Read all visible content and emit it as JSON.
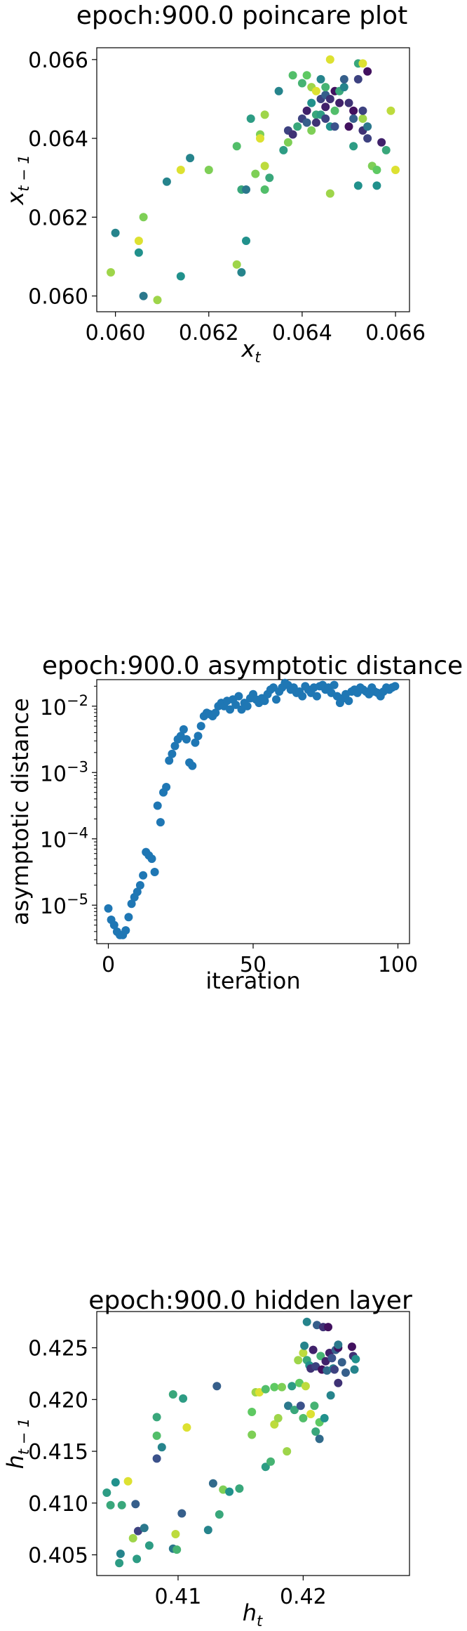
{
  "chart_data": [
    {
      "type": "scatter",
      "title": "epoch:900.0 poincare plot",
      "xlabel": "x",
      "xlabel_sub": "t",
      "ylabel": "x",
      "ylabel_sub": "t − 1",
      "xlim": [
        0.0596,
        0.0663
      ],
      "ylim": [
        0.0596,
        0.0663
      ],
      "xticks": [
        0.06,
        0.062,
        0.064,
        0.066
      ],
      "yticks": [
        0.06,
        0.062,
        0.064,
        0.066
      ],
      "xtick_labels": [
        "0.060",
        "0.062",
        "0.064",
        "0.066"
      ],
      "ytick_labels": [
        "0.060",
        "0.062",
        "0.064",
        "0.066"
      ],
      "colormap": "viridis",
      "points": [
        [
          0.0599,
          0.0606,
          0.85
        ],
        [
          0.06,
          0.0616,
          0.45
        ],
        [
          0.0605,
          0.0614,
          0.95
        ],
        [
          0.0605,
          0.0611,
          0.5
        ],
        [
          0.0606,
          0.062,
          0.8
        ],
        [
          0.0606,
          0.06,
          0.4
        ],
        [
          0.0609,
          0.0599,
          0.85
        ],
        [
          0.0611,
          0.0629,
          0.45
        ],
        [
          0.0614,
          0.0632,
          0.95
        ],
        [
          0.0614,
          0.0605,
          0.5
        ],
        [
          0.0616,
          0.0635,
          0.45
        ],
        [
          0.062,
          0.0632,
          0.8
        ],
        [
          0.0626,
          0.0638,
          0.7
        ],
        [
          0.0626,
          0.0608,
          0.85
        ],
        [
          0.0627,
          0.0606,
          0.45
        ],
        [
          0.0627,
          0.0627,
          0.6
        ],
        [
          0.0628,
          0.0614,
          0.5
        ],
        [
          0.0628,
          0.0627,
          0.4
        ],
        [
          0.0629,
          0.0645,
          0.55
        ],
        [
          0.063,
          0.0631,
          0.8
        ],
        [
          0.0631,
          0.0641,
          0.8
        ],
        [
          0.0631,
          0.064,
          0.95
        ],
        [
          0.0632,
          0.0627,
          0.7
        ],
        [
          0.0632,
          0.0633,
          0.9
        ],
        [
          0.0632,
          0.0646,
          0.85
        ],
        [
          0.0633,
          0.063,
          0.6
        ],
        [
          0.0635,
          0.0652,
          0.45
        ],
        [
          0.0636,
          0.0637,
          0.55
        ],
        [
          0.0637,
          0.0639,
          0.8
        ],
        [
          0.0637,
          0.0642,
          0.2
        ],
        [
          0.0638,
          0.0656,
          0.7
        ],
        [
          0.0638,
          0.0641,
          0.15
        ],
        [
          0.0639,
          0.0643,
          0.6
        ],
        [
          0.064,
          0.0654,
          0.65
        ],
        [
          0.064,
          0.0645,
          0.2
        ],
        [
          0.0641,
          0.0656,
          0.75
        ],
        [
          0.0641,
          0.0647,
          0.1
        ],
        [
          0.0641,
          0.0644,
          0.3
        ],
        [
          0.0642,
          0.0653,
          0.85
        ],
        [
          0.0642,
          0.0649,
          0.5
        ],
        [
          0.0642,
          0.0642,
          0.8
        ],
        [
          0.0643,
          0.0646,
          0.6
        ],
        [
          0.0643,
          0.0644,
          0.15
        ],
        [
          0.0643,
          0.0652,
          0.95
        ],
        [
          0.0644,
          0.065,
          0.2
        ],
        [
          0.0644,
          0.0655,
          0.45
        ],
        [
          0.0644,
          0.0646,
          0.55
        ],
        [
          0.0645,
          0.0651,
          0.3
        ],
        [
          0.0645,
          0.0648,
          0.1
        ],
        [
          0.0645,
          0.0653,
          0.65
        ],
        [
          0.0645,
          0.0645,
          0.2
        ],
        [
          0.0646,
          0.066,
          0.95
        ],
        [
          0.0646,
          0.065,
          0.15
        ],
        [
          0.0646,
          0.0643,
          0.5
        ],
        [
          0.0646,
          0.0626,
          0.85
        ],
        [
          0.0647,
          0.0652,
          0.05
        ],
        [
          0.0647,
          0.0647,
          0.7
        ],
        [
          0.0647,
          0.0643,
          0.25
        ],
        [
          0.0648,
          0.0652,
          0.6
        ],
        [
          0.0648,
          0.0649,
          0.1
        ],
        [
          0.0649,
          0.0653,
          0.45
        ],
        [
          0.0649,
          0.0655,
          0.3
        ],
        [
          0.065,
          0.0643,
          0.05
        ],
        [
          0.065,
          0.0649,
          0.15
        ],
        [
          0.0651,
          0.0647,
          0.05
        ],
        [
          0.0651,
          0.0645,
          0.3
        ],
        [
          0.0651,
          0.0638,
          0.55
        ],
        [
          0.0652,
          0.0628,
          0.5
        ],
        [
          0.0652,
          0.0655,
          0.2
        ],
        [
          0.0652,
          0.0659,
          0.6
        ],
        [
          0.0653,
          0.0659,
          0.95
        ],
        [
          0.0653,
          0.0645,
          0.85
        ],
        [
          0.0653,
          0.0647,
          0.2
        ],
        [
          0.0653,
          0.0642,
          0.15
        ],
        [
          0.0654,
          0.0657,
          0.05
        ],
        [
          0.0654,
          0.0643,
          0.4
        ],
        [
          0.0654,
          0.064,
          0.2
        ],
        [
          0.0655,
          0.0633,
          0.8
        ],
        [
          0.0656,
          0.0632,
          0.75
        ],
        [
          0.0656,
          0.0628,
          0.5
        ],
        [
          0.0657,
          0.0639,
          0.1
        ],
        [
          0.0658,
          0.0637,
          0.6
        ],
        [
          0.0659,
          0.0647,
          0.9
        ],
        [
          0.066,
          0.0632,
          0.95
        ]
      ]
    },
    {
      "type": "scatter",
      "title": "epoch:900.0 asymptotic distance",
      "xlabel": "iteration",
      "ylabel": "asymptotic distance",
      "xlim": [
        -4,
        104
      ],
      "yscale": "log",
      "ylim_log10": [
        -5.58,
        -1.6
      ],
      "xticks": [
        0,
        50,
        100
      ],
      "xtick_labels": [
        "0",
        "50",
        "100"
      ],
      "yticks_log10": [
        -5,
        -4,
        -3,
        -2
      ],
      "ytick_bases": [
        "10",
        "10",
        "10",
        "10"
      ],
      "ytick_exps": [
        "−5",
        "−4",
        "−3",
        "−2"
      ],
      "color": "#1f77b4",
      "x": [
        0,
        1,
        2,
        3,
        4,
        5,
        6,
        7,
        8,
        9,
        10,
        11,
        12,
        13,
        14,
        15,
        16,
        17,
        18,
        19,
        20,
        21,
        22,
        23,
        24,
        25,
        26,
        27,
        28,
        29,
        30,
        31,
        32,
        33,
        34,
        35,
        36,
        37,
        38,
        39,
        40,
        41,
        42,
        43,
        44,
        45,
        46,
        47,
        48,
        49,
        50,
        51,
        52,
        53,
        54,
        55,
        56,
        57,
        58,
        59,
        60,
        61,
        62,
        63,
        64,
        65,
        66,
        67,
        68,
        69,
        70,
        71,
        72,
        73,
        74,
        75,
        76,
        77,
        78,
        79,
        80,
        81,
        82,
        83,
        84,
        85,
        86,
        87,
        88,
        89,
        90,
        91,
        92,
        93,
        94,
        95,
        96,
        97,
        98,
        99
      ],
      "y_log10": [
        -5.05,
        -5.22,
        -5.3,
        -5.4,
        -5.45,
        -5.45,
        -5.38,
        -5.18,
        -4.98,
        -4.88,
        -4.8,
        -4.7,
        -4.55,
        -4.2,
        -4.25,
        -4.3,
        -4.5,
        -3.5,
        -3.75,
        -3.3,
        -3.22,
        -2.82,
        -2.72,
        -2.6,
        -2.5,
        -2.45,
        -2.35,
        -2.5,
        -2.85,
        -2.9,
        -2.55,
        -2.45,
        -2.3,
        -2.15,
        -2.1,
        -2.12,
        -2.15,
        -2.1,
        -2.0,
        -1.95,
        -2.0,
        -1.92,
        -2.05,
        -1.9,
        -1.98,
        -1.85,
        -2.05,
        -1.95,
        -2.0,
        -1.88,
        -1.82,
        -1.9,
        -1.95,
        -1.88,
        -1.92,
        -1.82,
        -1.75,
        -1.72,
        -1.9,
        -1.78,
        -1.72,
        -1.65,
        -1.68,
        -1.75,
        -1.72,
        -1.8,
        -1.78,
        -1.85,
        -1.7,
        -1.75,
        -1.8,
        -1.72,
        -1.85,
        -1.7,
        -1.68,
        -1.75,
        -1.72,
        -1.8,
        -1.68,
        -1.85,
        -1.95,
        -1.88,
        -1.82,
        -1.92,
        -1.78,
        -1.75,
        -1.8,
        -1.72,
        -1.75,
        -1.78,
        -1.82,
        -1.72,
        -1.78,
        -1.8,
        -1.85,
        -1.78,
        -1.72,
        -1.75,
        -1.72,
        -1.7
      ]
    },
    {
      "type": "scatter",
      "title": "epoch:900.0 hidden layer",
      "xlabel": "h",
      "xlabel_sub": "t",
      "ylabel": "h",
      "ylabel_sub": "t − 1",
      "xlim": [
        0.4035,
        0.4285
      ],
      "ylim": [
        0.403,
        0.4285
      ],
      "xticks": [
        0.41,
        0.42
      ],
      "yticks": [
        0.405,
        0.41,
        0.415,
        0.42,
        0.425
      ],
      "xtick_labels": [
        "0.41",
        "0.42"
      ],
      "ytick_labels": [
        "0.405",
        "0.410",
        "0.415",
        "0.420",
        "0.425"
      ],
      "colormap": "viridis",
      "points": [
        [
          0.4043,
          0.411,
          0.55
        ],
        [
          0.4046,
          0.4098,
          0.6
        ],
        [
          0.405,
          0.412,
          0.5
        ],
        [
          0.4053,
          0.4042,
          0.55
        ],
        [
          0.4054,
          0.4051,
          0.45
        ],
        [
          0.4055,
          0.4098,
          0.6
        ],
        [
          0.406,
          0.4121,
          0.95
        ],
        [
          0.4064,
          0.4066,
          0.85
        ],
        [
          0.4066,
          0.4099,
          0.3
        ],
        [
          0.4067,
          0.4046,
          0.55
        ],
        [
          0.4068,
          0.4073,
          0.2
        ],
        [
          0.4073,
          0.4076,
          0.4
        ],
        [
          0.4077,
          0.4059,
          0.55
        ],
        [
          0.4083,
          0.4183,
          0.6
        ],
        [
          0.4083,
          0.4165,
          0.7
        ],
        [
          0.4083,
          0.4143,
          0.25
        ],
        [
          0.4087,
          0.4154,
          0.45
        ],
        [
          0.4096,
          0.4205,
          0.6
        ],
        [
          0.4096,
          0.4056,
          0.4
        ],
        [
          0.4098,
          0.407,
          0.9
        ],
        [
          0.4099,
          0.4055,
          0.65
        ],
        [
          0.4103,
          0.409,
          0.3
        ],
        [
          0.4104,
          0.4201,
          0.55
        ],
        [
          0.4107,
          0.4173,
          0.95
        ],
        [
          0.4124,
          0.4074,
          0.45
        ],
        [
          0.4128,
          0.4119,
          0.35
        ],
        [
          0.4131,
          0.4213,
          0.3
        ],
        [
          0.4133,
          0.4089,
          0.6
        ],
        [
          0.4136,
          0.4113,
          0.8
        ],
        [
          0.4141,
          0.4111,
          0.5
        ],
        [
          0.4149,
          0.4114,
          0.6
        ],
        [
          0.4159,
          0.4188,
          0.75
        ],
        [
          0.4159,
          0.4166,
          0.8
        ],
        [
          0.4162,
          0.4207,
          0.85
        ],
        [
          0.4165,
          0.4207,
          0.95
        ],
        [
          0.417,
          0.4135,
          0.55
        ],
        [
          0.417,
          0.421,
          0.7
        ],
        [
          0.4174,
          0.414,
          0.65
        ],
        [
          0.4177,
          0.4176,
          0.9
        ],
        [
          0.4177,
          0.4212,
          0.75
        ],
        [
          0.418,
          0.4182,
          0.85
        ],
        [
          0.4183,
          0.4212,
          0.8
        ],
        [
          0.4187,
          0.415,
          0.85
        ],
        [
          0.4188,
          0.4194,
          0.4
        ],
        [
          0.4191,
          0.4213,
          0.55
        ],
        [
          0.4193,
          0.419,
          0.6
        ],
        [
          0.4196,
          0.4238,
          0.85
        ],
        [
          0.4197,
          0.4216,
          0.75
        ],
        [
          0.4198,
          0.4194,
          0.25
        ],
        [
          0.42,
          0.4245,
          0.9
        ],
        [
          0.42,
          0.4182,
          0.7
        ],
        [
          0.4201,
          0.4252,
          0.45
        ],
        [
          0.4202,
          0.4213,
          0.9
        ],
        [
          0.4203,
          0.4275,
          0.45
        ],
        [
          0.4203,
          0.4238,
          0.6
        ],
        [
          0.4205,
          0.4233,
          0.5
        ],
        [
          0.4206,
          0.423,
          0.15
        ],
        [
          0.4206,
          0.4186,
          0.95
        ],
        [
          0.4208,
          0.4248,
          0.1
        ],
        [
          0.4209,
          0.4194,
          0.65
        ],
        [
          0.421,
          0.4169,
          0.6
        ],
        [
          0.421,
          0.4232,
          0.2
        ],
        [
          0.4211,
          0.4272,
          0.3
        ],
        [
          0.4213,
          0.4178,
          0.75
        ],
        [
          0.4213,
          0.4162,
          0.35
        ],
        [
          0.4214,
          0.4242,
          0.65
        ],
        [
          0.4215,
          0.4229,
          0.05
        ],
        [
          0.4216,
          0.427,
          0.15
        ],
        [
          0.4217,
          0.4182,
          0.5
        ],
        [
          0.4218,
          0.4237,
          0.1
        ],
        [
          0.4219,
          0.4228,
          0.35
        ],
        [
          0.422,
          0.427,
          0.05
        ],
        [
          0.4221,
          0.4245,
          0.1
        ],
        [
          0.4222,
          0.4204,
          0.45
        ],
        [
          0.4223,
          0.424,
          0.25
        ],
        [
          0.4224,
          0.423,
          0.45
        ],
        [
          0.4225,
          0.4229,
          0.2
        ],
        [
          0.4226,
          0.4248,
          0.3
        ],
        [
          0.4228,
          0.425,
          0.05
        ],
        [
          0.4228,
          0.4216,
          0.15
        ],
        [
          0.4231,
          0.4236,
          0.3
        ],
        [
          0.4234,
          0.4226,
          0.3
        ],
        [
          0.4239,
          0.4251,
          0.05
        ],
        [
          0.424,
          0.4242,
          0.15
        ],
        [
          0.4241,
          0.4229,
          0.45
        ],
        [
          0.4242,
          0.4239,
          0.5
        ],
        [
          0.4228,
          0.4253,
          0.4
        ]
      ]
    }
  ]
}
